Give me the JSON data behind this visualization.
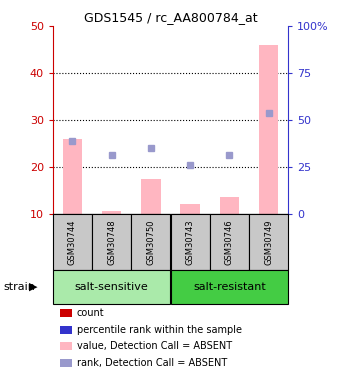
{
  "title": "GDS1545 / rc_AA800784_at",
  "samples": [
    "GSM30744",
    "GSM30748",
    "GSM30750",
    "GSM30743",
    "GSM30746",
    "GSM30749"
  ],
  "value_bars": [
    26.0,
    10.5,
    17.5,
    12.0,
    13.5,
    46.0
  ],
  "rank_dots": [
    25.5,
    22.5,
    24.0,
    20.5,
    22.5,
    31.5
  ],
  "ylim_left": [
    10,
    50
  ],
  "ylim_right": [
    0,
    100
  ],
  "yticks_left": [
    10,
    20,
    30,
    40,
    50
  ],
  "yticks_right": [
    0,
    25,
    50,
    75,
    100
  ],
  "ytick_labels_right": [
    "0",
    "25",
    "50",
    "75",
    "100%"
  ],
  "bar_color": "#FFB6C1",
  "dot_color": "#9999CC",
  "left_axis_color": "#CC0000",
  "right_axis_color": "#3333CC",
  "sample_bg_color": "#C8C8C8",
  "group_regions": [
    {
      "xmin": -0.5,
      "xmax": 2.5,
      "label": "salt-sensitive",
      "color": "#AAEAAA"
    },
    {
      "xmin": 2.5,
      "xmax": 5.5,
      "label": "salt-resistant",
      "color": "#44CC44"
    }
  ],
  "legend_items": [
    {
      "label": "count",
      "color": "#CC0000"
    },
    {
      "label": "percentile rank within the sample",
      "color": "#3333CC"
    },
    {
      "label": "value, Detection Call = ABSENT",
      "color": "#FFB6C1"
    },
    {
      "label": "rank, Detection Call = ABSENT",
      "color": "#9999CC"
    }
  ],
  "grid_yticks": [
    20,
    30,
    40
  ]
}
